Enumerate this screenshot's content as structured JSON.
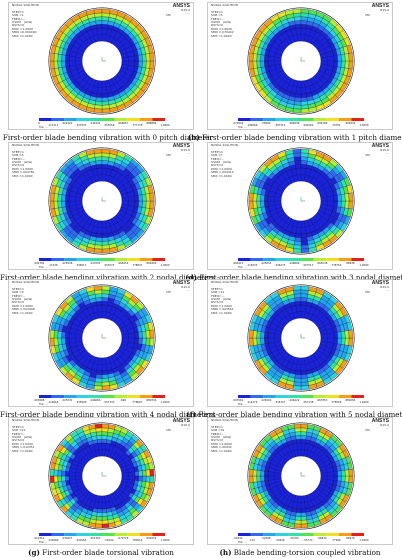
{
  "panels": [
    {
      "id": "a",
      "caption_label": "(a)",
      "caption_text": "First-order blade bending vibration with 0 pitch diameter",
      "header": "NODAL SOLUTION\n\nSTEP=1\nSUB =1\nFREQ=...\nUSUM   (AVG)\nRSYS=0\nDMX =1.0000\nSMN =0.000000\nSMX =1.0000",
      "ansys": "ANSYS",
      "time": "R15.0\n...",
      "mx": "MX",
      "ticks": [
        "0",
        ".111111",
        ".222222",
        ".333333",
        ".444444",
        ".555556",
        ".666667",
        ".777778",
        ".888889",
        "1.0000"
      ],
      "file": "File: ...",
      "pattern": "n0"
    },
    {
      "id": "b",
      "caption_label": "(b)",
      "caption_text": "First-order blade bending vibration with 1 pitch diameter",
      "header": "NODAL SOLUTION\n\nSTEP=1\nSUB =3\nFREQ=...\nUSUM   (AVG)\nRSYS=0\nDMX =1.0020\nSMN =.079442\nSMX =1.0020",
      "ansys": "ANSYS",
      "time": "R15.0\n...",
      "mx": "MX",
      "ticks": [
        ".079442",
        ".182066",
        ".28469",
        ".387314",
        ".489938",
        ".592562",
        ".695186",
        ".79781",
        ".900434",
        "1.0020"
      ],
      "file": "File: ...",
      "pattern": "n1"
    },
    {
      "id": "c",
      "caption_label": "(c)",
      "caption_text": "First-order blade bending vibration with 2 nodal diameters",
      "header": "NODAL SOLUTION\n\nSTEP=1\nSUB =5\nFREQ=...\nUSUM   (AVG)\nRSYS=0\nDMX =1.0000\nSMN =.004781\nSMX =1.0000",
      "ansys": "ANSYS",
      "time": "R15.0\n...",
      "mx": "MX",
      "ticks": [
        ".004781",
        ".11536",
        ".225938",
        ".336517",
        ".447095",
        ".557674",
        ".668252",
        ".778831",
        ".889409",
        "1.0000"
      ],
      "file": "File: ...",
      "pattern": "n2"
    },
    {
      "id": "d",
      "caption_label": "(d)",
      "caption_text": "First-order blade bending vibration with 3 nodal diameters",
      "header": "NODAL SOLUTION\n\nSTEP=1\nSUB =7\nFREQ=...\nUSUM   (AVG)\nRSYS=0\nDMX =1.0000\nSMN =.004412\nSMX =1.0000",
      "ansys": "ANSYS",
      "time": "R15.0\n...",
      "mx": "MX",
      "ticks": [
        ".004412",
        ".115033",
        ".225654",
        ".336275",
        ".446896",
        ".557517",
        ".668138",
        ".778759",
        ".88938",
        "1.0000"
      ],
      "file": "File: ...",
      "pattern": "n3"
    },
    {
      "id": "e",
      "caption_label": "(e)",
      "caption_text": "First-order blade bending vibration with 4 nodal diameters",
      "header": "NODAL SOLUTION\n\nSTEP=1\nSUB =9\nFREQ=...\nUSUM   (AVG)\nRSYS=0\nDMX =1.0000\nSMN =.003998\nSMX =1.0000",
      "ansys": "ANSYS",
      "time": "R15.0\n...",
      "mx": "MX",
      "ticks": [
        ".003998",
        ".114665",
        ".225332",
        ".335999",
        ".446666",
        ".557333",
        ".668",
        ".778667",
        ".889334",
        "1.0000"
      ],
      "file": "File: ...",
      "pattern": "n4"
    },
    {
      "id": "f",
      "caption_label": "(f)",
      "caption_text": "First-order blade bending vibration with 5 nodal diameters",
      "header": "NODAL SOLUTION\n\nSTEP=1\nSUB =11\nFREQ=...\nUSUM   (AVG)\nRSYS=0\nDMX =1.0000\nSMN =.003561\nSMX =1.0000",
      "ansys": "ANSYS",
      "time": "R15.0\n...",
      "mx": "MX",
      "ticks": [
        ".003561",
        ".114276",
        ".224992",
        ".335707",
        ".446422",
        ".557138",
        ".667853",
        ".778569",
        ".889284",
        "1.0000"
      ],
      "file": "File: ...",
      "pattern": "n5"
    },
    {
      "id": "g",
      "caption_label": "(g)",
      "caption_text": "First-order blade torsional vibration",
      "header": "NODAL SOLUTION\n\nSTEP=1\nSUB =21\nFREQ=...\nUSUM   (AVG)\nRSYS=0\nDMX =1.0000\nSMN =.012351\nSMX =1.0000",
      "ansys": "ANSYS",
      "time": "R15.0\n...",
      "mx": "MX",
      "ticks": [
        ".012351",
        ".122089",
        ".231827",
        ".341565",
        ".451303",
        ".56104",
        ".670778",
        ".780516",
        ".890254",
        "1.0000"
      ],
      "file": "File: ...",
      "pattern": "tors"
    },
    {
      "id": "h",
      "caption_label": "(h)",
      "caption_text": "Blade bending-torsion coupled vibration",
      "header": "NODAL SOLUTION\n\nSTEP=1\nSUB =31\nFREQ=...\nUSUM   (AVG)\nRSYS=0\nDMX =1.0000\nSMN =.00432\nSMX =1.0000",
      "ansys": "ANSYS",
      "time": "R15.0\n...",
      "mx": "MX",
      "ticks": [
        ".00432",
        ".115",
        ".22568",
        ".33636",
        ".44704",
        ".55772",
        ".66840",
        ".77908",
        ".88976",
        "1.0000"
      ],
      "file": "File: ...",
      "pattern": "coupled"
    }
  ],
  "palette": [
    "#1a23d8",
    "#2f6bf0",
    "#22a7ee",
    "#2ed2e0",
    "#31e2a6",
    "#52e34e",
    "#b8ee2e",
    "#f1e11c",
    "#f89d14",
    "#e4221a"
  ]
}
